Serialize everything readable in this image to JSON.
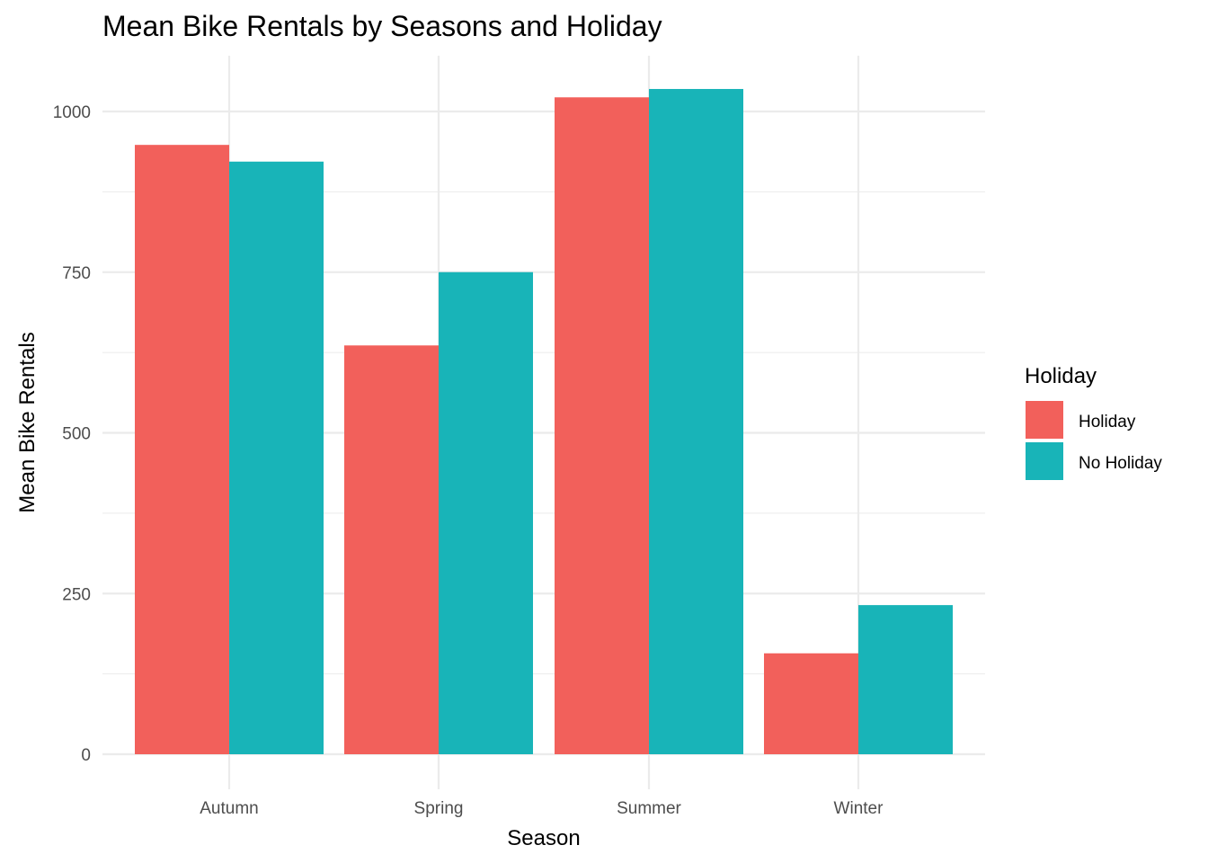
{
  "chart_data": {
    "type": "bar",
    "title": "Mean Bike Rentals by Seasons and Holiday",
    "xlabel": "Season",
    "ylabel": "Mean Bike Rentals",
    "categories": [
      "Autumn",
      "Spring",
      "Summer",
      "Winter"
    ],
    "series": [
      {
        "name": "Holiday",
        "color": "#F2605B",
        "values": [
          948,
          636,
          1022,
          157
        ]
      },
      {
        "name": "No Holiday",
        "color": "#18B4B8",
        "values": [
          922,
          750,
          1035,
          232
        ]
      }
    ],
    "ylim": [
      0,
      1085
    ],
    "yticks": [
      0,
      250,
      500,
      750,
      1000
    ],
    "yticks_labels": [
      "0",
      "250",
      "500",
      "750",
      "1000"
    ],
    "grid": true,
    "legend": {
      "title": "Holiday",
      "position": "right"
    }
  }
}
